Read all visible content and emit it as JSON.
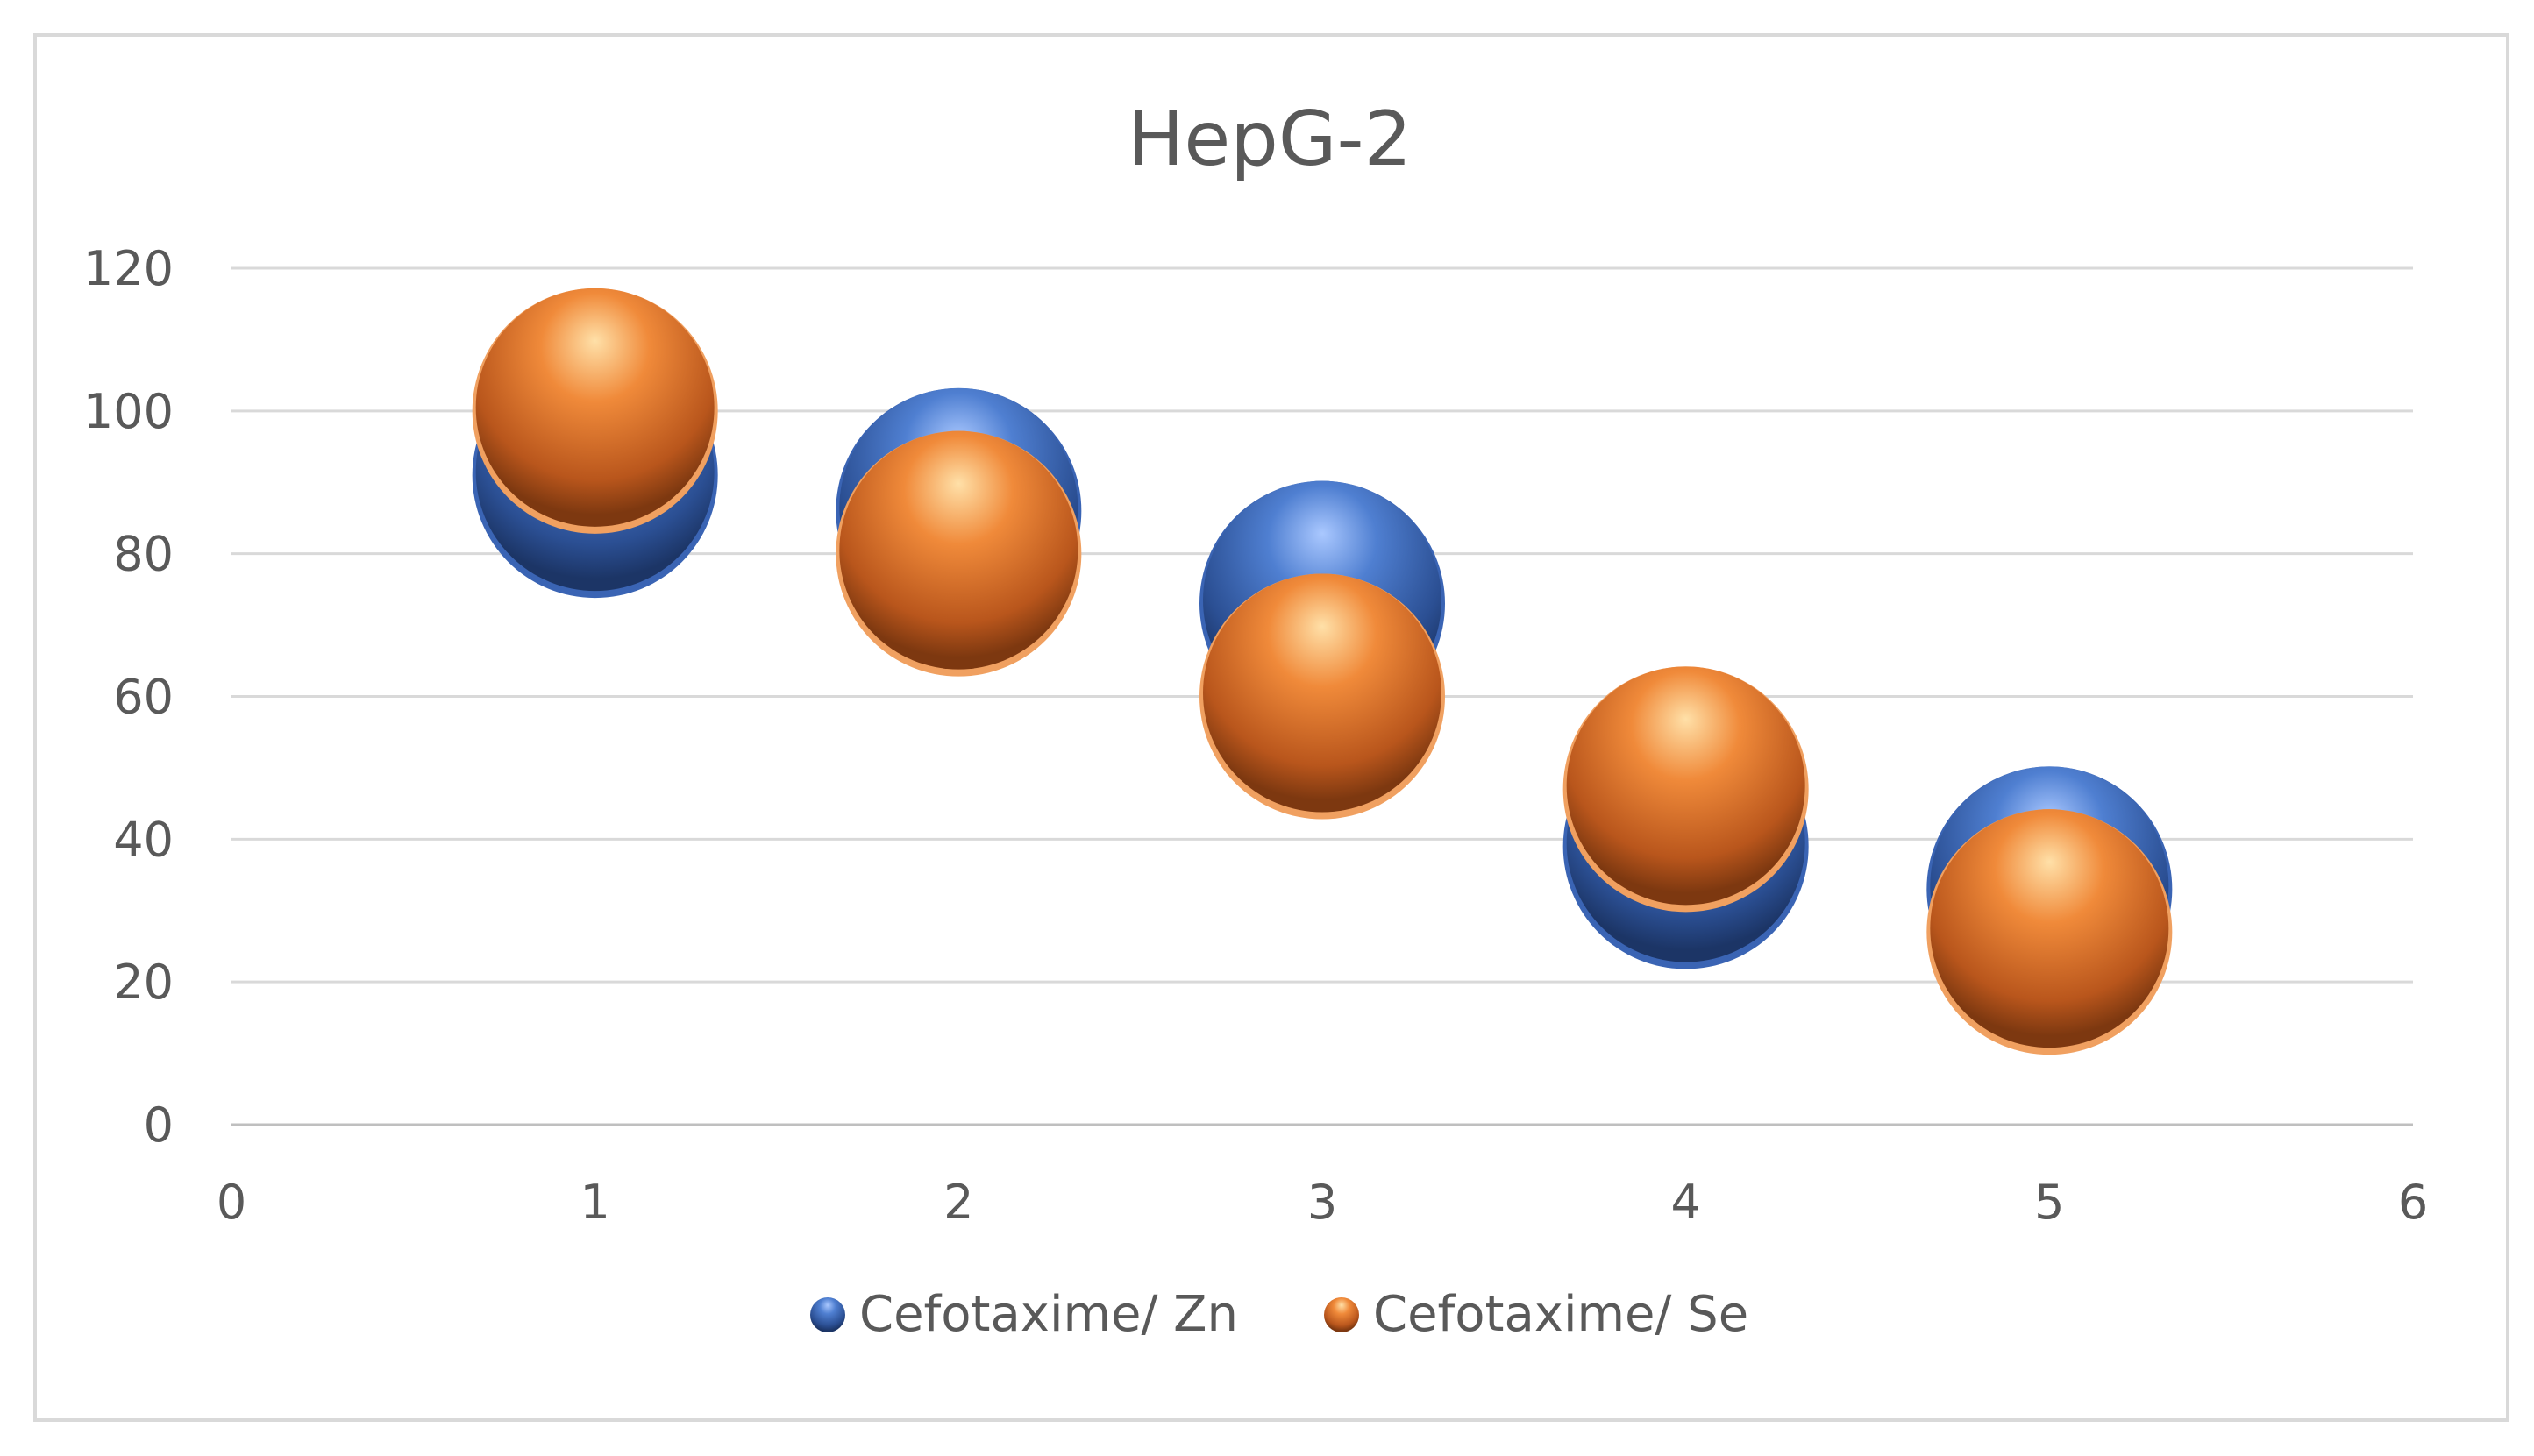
{
  "chart_data": {
    "type": "scatter",
    "title": "HepG-2",
    "xlabel": "",
    "ylabel": "",
    "xlim": [
      0,
      6
    ],
    "ylim": [
      0,
      120
    ],
    "x_ticks": [
      0,
      1,
      2,
      3,
      4,
      5,
      6
    ],
    "y_ticks": [
      0,
      20,
      40,
      60,
      80,
      100,
      120
    ],
    "grid": true,
    "legend_position": "bottom-center",
    "series": [
      {
        "name": "Cefotaxime/ Zn",
        "color": "#4472c4",
        "x": [
          1,
          2,
          3,
          4,
          5
        ],
        "y": [
          91,
          86,
          73,
          39,
          33
        ]
      },
      {
        "name": "Cefotaxime/ Se",
        "color": "#ed7d31",
        "x": [
          1,
          2,
          3,
          4,
          5
        ],
        "y": [
          100,
          80,
          60,
          47,
          27
        ]
      }
    ]
  }
}
